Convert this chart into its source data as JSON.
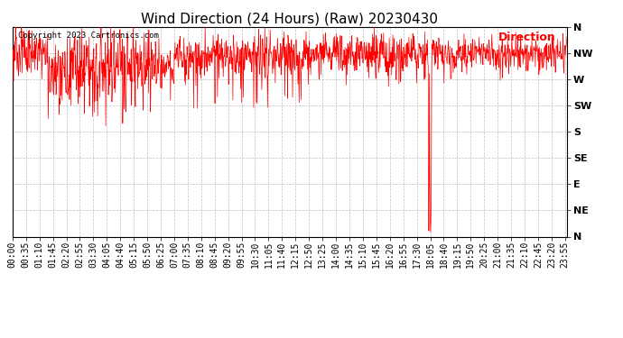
{
  "title": "Wind Direction (24 Hours) (Raw) 20230430",
  "copyright_text": "Copyright 2023 Cartronics.com",
  "legend_label": "Direction",
  "legend_color": "red",
  "line_color": "red",
  "background_color": "#ffffff",
  "grid_color": "#b0b0b0",
  "ytick_labels": [
    "N",
    "NW",
    "W",
    "SW",
    "S",
    "SE",
    "E",
    "NE",
    "N"
  ],
  "ytick_values": [
    360,
    315,
    270,
    225,
    180,
    135,
    90,
    45,
    0
  ],
  "ylim": [
    0,
    360
  ],
  "title_fontsize": 11,
  "tick_fontsize": 7,
  "xtick_labels": [
    "00:00",
    "00:35",
    "01:10",
    "01:45",
    "02:20",
    "02:55",
    "03:30",
    "04:05",
    "04:40",
    "05:15",
    "05:50",
    "06:25",
    "07:00",
    "07:35",
    "08:10",
    "08:45",
    "09:20",
    "09:55",
    "10:30",
    "11:05",
    "11:40",
    "12:15",
    "12:50",
    "13:25",
    "14:00",
    "14:35",
    "15:10",
    "15:45",
    "16:20",
    "16:55",
    "17:30",
    "18:05",
    "18:40",
    "19:15",
    "19:50",
    "20:25",
    "21:00",
    "21:35",
    "22:10",
    "22:45",
    "23:20",
    "23:55"
  ]
}
